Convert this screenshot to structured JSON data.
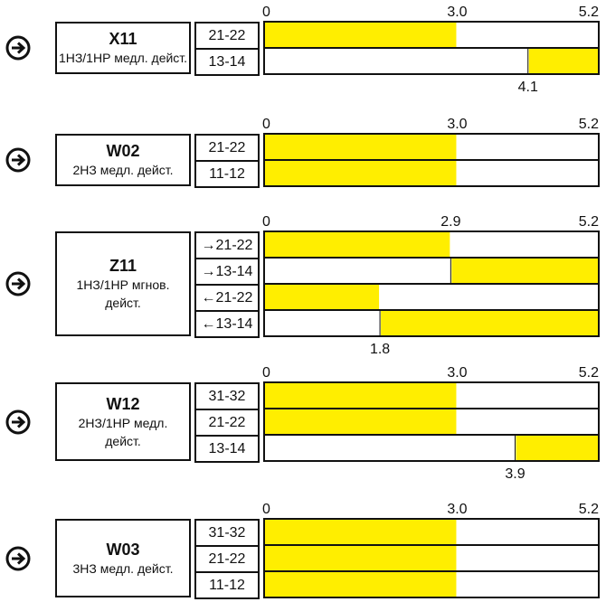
{
  "chart_data": {
    "type": "timing-diagram",
    "axis_ticks": [
      "0",
      "3.0",
      "5.2"
    ],
    "xlim": [
      0,
      5.2
    ],
    "bar_color": "#ffee00",
    "switches": [
      {
        "name": "X11",
        "desc_lines": [
          "1НЗ/1НР медл. дейст."
        ],
        "ticks": [
          {
            "label": "0",
            "value": 0
          },
          {
            "label": "3.0",
            "value": 3.0
          },
          {
            "label": "5.2",
            "value": 5.2
          }
        ],
        "contacts": [
          {
            "label": "21-22",
            "start": 0,
            "end": 3.0
          },
          {
            "label": "13-14",
            "start": 4.1,
            "end": 5.2
          }
        ],
        "bottom_label": {
          "text": "4.1",
          "value": 4.1
        }
      },
      {
        "name": "W02",
        "desc_lines": [
          "2НЗ медл. дейст."
        ],
        "ticks": [
          {
            "label": "0",
            "value": 0
          },
          {
            "label": "3.0",
            "value": 3.0
          },
          {
            "label": "5.2",
            "value": 5.2
          }
        ],
        "contacts": [
          {
            "label": "21-22",
            "start": 0,
            "end": 3.0
          },
          {
            "label": "11-12",
            "start": 0,
            "end": 3.0
          }
        ],
        "bottom_label": null
      },
      {
        "name": "Z11",
        "desc_lines": [
          "1НЗ/1НР мгнов.",
          "дейст."
        ],
        "ticks": [
          {
            "label": "0",
            "value": 0
          },
          {
            "label": "2.9",
            "value": 2.9
          },
          {
            "label": "5.2",
            "value": 5.2
          }
        ],
        "contacts": [
          {
            "label": "→21-22",
            "start": 0,
            "end": 2.9
          },
          {
            "label": "→13-14",
            "start": 2.9,
            "end": 5.2
          },
          {
            "label": "←21-22",
            "start": 0,
            "end": 1.8
          },
          {
            "label": "←13-14",
            "start": 1.8,
            "end": 5.2
          }
        ],
        "bottom_label": {
          "text": "1.8",
          "value": 1.8
        }
      },
      {
        "name": "W12",
        "desc_lines": [
          "2НЗ/1НР медл.",
          "дейст."
        ],
        "ticks": [
          {
            "label": "0",
            "value": 0
          },
          {
            "label": "3.0",
            "value": 3.0
          },
          {
            "label": "5.2",
            "value": 5.2
          }
        ],
        "contacts": [
          {
            "label": "31-32",
            "start": 0,
            "end": 3.0
          },
          {
            "label": "21-22",
            "start": 0,
            "end": 3.0
          },
          {
            "label": "13-14",
            "start": 3.9,
            "end": 5.2
          }
        ],
        "bottom_label": {
          "text": "3.9",
          "value": 3.9
        }
      },
      {
        "name": "W03",
        "desc_lines": [
          "3НЗ медл. дейст."
        ],
        "ticks": [
          {
            "label": "0",
            "value": 0
          },
          {
            "label": "3.0",
            "value": 3.0
          },
          {
            "label": "5.2",
            "value": 5.2
          }
        ],
        "contacts": [
          {
            "label": "31-32",
            "start": 0,
            "end": 3.0
          },
          {
            "label": "21-22",
            "start": 0,
            "end": 3.0
          },
          {
            "label": "11-12",
            "start": 0,
            "end": 3.0
          }
        ],
        "bottom_label": null
      }
    ]
  }
}
